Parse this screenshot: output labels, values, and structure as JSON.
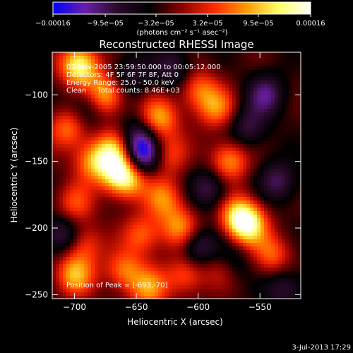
{
  "chart_data": {
    "type": "heatmap",
    "title": "Reconstructed RHESSI Image",
    "xlabel": "Heliocentric X (arcsec)",
    "ylabel": "Heliocentric Y (arcsec)",
    "xlim": [
      -718,
      -517
    ],
    "ylim": [
      -253,
      -68
    ],
    "x_ticks": [
      {
        "value": -700,
        "label": "−700"
      },
      {
        "value": -650,
        "label": "−650"
      },
      {
        "value": -600,
        "label": "−600"
      },
      {
        "value": -550,
        "label": "−550"
      }
    ],
    "y_ticks": [
      {
        "value": -100,
        "label": "−100"
      },
      {
        "value": -150,
        "label": "−150"
      },
      {
        "value": -200,
        "label": "−200"
      },
      {
        "value": -250,
        "label": "−250"
      }
    ],
    "colorbar": {
      "range": [
        -0.00016,
        0.00016
      ],
      "unit_label": "(photons cm⁻² s⁻¹ asec⁻²)",
      "ticks": [
        {
          "value": -0.00016,
          "label": "−0.00016"
        },
        {
          "value": -9.5e-05,
          "label": "−9.5e−05"
        },
        {
          "value": -3.2e-05,
          "label": "−3.2e−05"
        },
        {
          "value": 3.2e-05,
          "label": "3.2e−05"
        },
        {
          "value": 9.5e-05,
          "label": "9.5e−05"
        },
        {
          "value": 0.00016,
          "label": "0.00016"
        }
      ],
      "colors": [
        "#0000ff",
        "#6a1fa8",
        "#2a0a2a",
        "#000000",
        "#8a0000",
        "#ff2a00",
        "#ff9900",
        "#ffff66",
        "#ffffff"
      ]
    },
    "annotations": [
      "01-Nov-2005 23:59:50.000 to 00:05:12.000",
      "Detectors: 4F 5F 6F 7F 8F, Att 0",
      "Energy Range: 25.0 - 50.0 keV",
      "Clean     Total counts: 8.46E+03"
    ],
    "peak_label": "Position of Peak = [-693,-70]",
    "peak": [
      -693,
      -70
    ],
    "features": [
      {
        "x": -696,
        "y": -78,
        "intensity": 1.0
      },
      {
        "x": -675,
        "y": -100,
        "intensity": 0.75
      },
      {
        "x": -705,
        "y": -125,
        "intensity": 0.55
      },
      {
        "x": -685,
        "y": -150,
        "intensity": 0.6
      },
      {
        "x": -668,
        "y": -142,
        "intensity": 0.7
      },
      {
        "x": -664,
        "y": -158,
        "intensity": 0.8
      },
      {
        "x": -655,
        "y": -162,
        "intensity": 0.7
      },
      {
        "x": -632,
        "y": -118,
        "intensity": 0.7
      },
      {
        "x": -625,
        "y": -145,
        "intensity": 0.5
      },
      {
        "x": -628,
        "y": -178,
        "intensity": 0.55
      },
      {
        "x": -615,
        "y": -200,
        "intensity": 0.6
      },
      {
        "x": -585,
        "y": -110,
        "intensity": 0.55
      },
      {
        "x": -575,
        "y": -150,
        "intensity": 0.65
      },
      {
        "x": -568,
        "y": -190,
        "intensity": 0.65
      },
      {
        "x": -560,
        "y": -198,
        "intensity": 0.85
      },
      {
        "x": -540,
        "y": -220,
        "intensity": 0.5
      },
      {
        "x": -700,
        "y": -235,
        "intensity": 0.7
      },
      {
        "x": -660,
        "y": -232,
        "intensity": 0.55
      },
      {
        "x": -640,
        "y": -245,
        "intensity": 0.6
      },
      {
        "x": -610,
        "y": -235,
        "intensity": 0.5
      },
      {
        "x": -580,
        "y": -228,
        "intensity": 0.55
      },
      {
        "x": -700,
        "y": -182,
        "intensity": 0.45
      },
      {
        "x": -692,
        "y": -212,
        "intensity": 0.45
      },
      {
        "x": -645,
        "y": -205,
        "intensity": 0.5
      },
      {
        "x": -600,
        "y": -96,
        "intensity": 0.5
      },
      {
        "x": -545,
        "y": -100,
        "intensity": -0.5
      },
      {
        "x": -648,
        "y": -132,
        "intensity": -0.5
      },
      {
        "x": -652,
        "y": -150,
        "intensity": -0.6
      },
      {
        "x": -640,
        "y": -145,
        "intensity": -0.45
      },
      {
        "x": -710,
        "y": -205,
        "intensity": -0.5
      },
      {
        "x": -590,
        "y": -170,
        "intensity": -0.45
      },
      {
        "x": -575,
        "y": -225,
        "intensity": -0.55
      },
      {
        "x": -600,
        "y": -215,
        "intensity": -0.5
      },
      {
        "x": -535,
        "y": -165,
        "intensity": -0.45
      },
      {
        "x": -560,
        "y": -125,
        "intensity": -0.4
      },
      {
        "x": -690,
        "y": -110,
        "intensity": -0.35
      },
      {
        "x": -620,
        "y": -80,
        "intensity": -0.4
      },
      {
        "x": -655,
        "y": -85,
        "intensity": -0.35
      },
      {
        "x": -530,
        "y": -245,
        "intensity": -0.4
      }
    ]
  },
  "footer_date": "3-Jul-2013 17:29"
}
